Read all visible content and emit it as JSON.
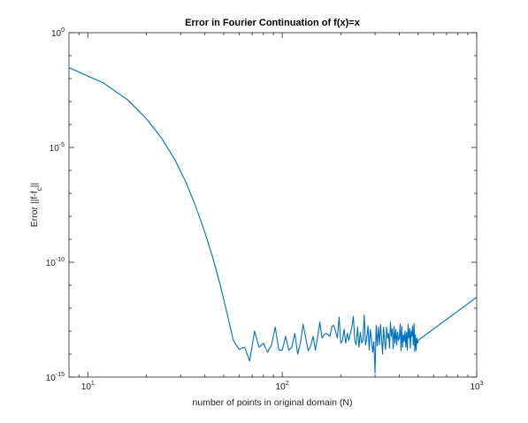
{
  "chart_data": {
    "type": "line",
    "title": "Error in Fourier Continuation of f(x)=x",
    "xlabel": "number of points in original domain (N)",
    "ylabel_prefix": "Error ||f-f",
    "ylabel_sub": "c",
    "ylabel_suffix": "||",
    "xscale": "log",
    "yscale": "log",
    "xlim": [
      8,
      1000
    ],
    "ylim": [
      1e-15,
      1
    ],
    "grid": false,
    "x_ticks": [
      {
        "value": 10,
        "base": "10",
        "exp": "1"
      },
      {
        "value": 100,
        "base": "10",
        "exp": "2"
      },
      {
        "value": 1000,
        "base": "10",
        "exp": "3"
      }
    ],
    "y_ticks": [
      {
        "value": 1,
        "base": "10",
        "exp": "0"
      },
      {
        "value": 1e-05,
        "base": "10",
        "exp": "-5"
      },
      {
        "value": 1e-10,
        "base": "10",
        "exp": "-10"
      },
      {
        "value": 1e-15,
        "base": "10",
        "exp": "-15"
      }
    ],
    "line_color": "#0072BD",
    "series": [
      {
        "x": [
          8,
          12,
          16,
          20,
          24,
          28,
          32,
          36,
          40,
          44,
          48,
          52,
          56,
          60,
          64,
          68,
          72,
          76,
          80,
          84,
          88,
          92,
          96,
          100,
          104,
          108,
          112,
          116,
          120,
          124,
          128,
          132,
          136,
          140,
          144,
          148,
          152,
          156,
          160,
          164,
          168,
          172,
          176,
          180,
          184,
          188,
          192,
          196,
          200,
          204,
          208,
          212,
          216,
          220,
          224,
          228,
          232,
          236,
          240,
          244,
          248,
          252,
          256,
          260,
          264,
          268,
          272,
          276,
          280,
          284,
          288,
          292,
          296,
          300,
          304,
          308,
          312,
          316,
          320,
          324,
          328,
          332,
          336,
          340,
          344,
          348,
          352,
          356,
          360,
          364,
          368,
          372,
          376,
          380,
          384,
          388,
          392,
          396,
          400,
          404,
          408,
          412,
          416,
          420,
          424,
          428,
          432,
          436,
          440,
          444,
          448,
          452,
          456,
          460,
          464,
          468,
          472,
          476,
          480,
          484,
          488,
          492,
          496,
          500,
          1000
        ],
        "y": [
          0.03,
          0.0065,
          0.0012,
          0.00018,
          2.5e-05,
          3e-06,
          3e-07,
          2.5e-08,
          2e-09,
          1.5e-10,
          1e-11,
          6e-13,
          4e-14,
          1.6e-14,
          2e-14,
          5e-15,
          1e-13,
          2e-14,
          3e-14,
          1.2e-14,
          2.5e-14,
          1.5e-13,
          1.5e-14,
          1.5e-14,
          6e-14,
          1.5e-14,
          2e-14,
          8e-14,
          1e-14,
          3e-14,
          2e-13,
          5e-14,
          1.4e-14,
          2.3e-14,
          6e-14,
          1.5e-14,
          5.5e-14,
          2.5e-13,
          5e-14,
          7e-14,
          8e-14,
          7e-14,
          6e-14,
          1.6e-13,
          1.8e-13,
          1e-13,
          5e-14,
          4e-13,
          3e-14,
          4e-14,
          1.2e-13,
          3e-14,
          8e-14,
          4e-14,
          8e-14,
          1.5e-13,
          4.5e-13,
          4e-14,
          2.5e-14,
          1.5e-13,
          2e-14,
          9e-14,
          3e-14,
          4e-14,
          5e-13,
          2.5e-14,
          5e-14,
          1.7e-13,
          1.5e-14,
          1.2e-13,
          4e-14,
          1.2e-14,
          3.5e-14,
          1.5e-15,
          1.8e-13,
          2.3e-14,
          1.5e-13,
          2.5e-14,
          2e-13,
          5e-14,
          1e-14,
          1.5e-13,
          3.5e-14,
          1.6e-14,
          1.5e-13,
          5e-14,
          8e-14,
          1.8e-14,
          2.5e-13,
          6e-14,
          1.3e-13,
          1.7e-14,
          1.6e-13,
          3e-14,
          1.2e-13,
          2.5e-14,
          9e-14,
          4e-14,
          5e-14,
          2e-13,
          1.4e-14,
          1.6e-13,
          2e-14,
          7e-14,
          3.5e-14,
          1e-13,
          2e-14,
          9e-14,
          1.5e-14,
          2e-13,
          5e-14,
          1.3e-13,
          1.8e-14,
          1e-13,
          6e-14,
          1.7e-13,
          2.5e-14,
          2.2e-13,
          1.3e-14,
          7e-14,
          1.5e-14,
          5e-14,
          3e-14,
          4e-14,
          3e-12
        ]
      }
    ]
  }
}
